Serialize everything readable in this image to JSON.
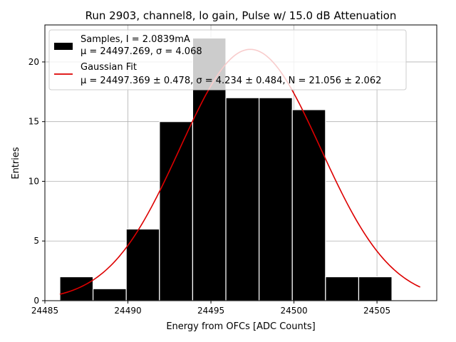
{
  "chart_data": {
    "type": "bar",
    "title": "Run 2903, channel8, lo gain, Pulse w/ 15.0 dB Attenuation",
    "xlabel": "Energy from OFCs [ADC Counts]",
    "ylabel": "Entries",
    "xlim": [
      24485,
      24508.6
    ],
    "ylim": [
      0,
      23.1
    ],
    "grid": true,
    "x_ticks": [
      24485,
      24490,
      24495,
      24500,
      24505
    ],
    "y_ticks": [
      0,
      5,
      10,
      15,
      20
    ],
    "bins": [
      {
        "left": 24485.9,
        "right": 24487.9,
        "value": 2
      },
      {
        "left": 24487.9,
        "right": 24489.9,
        "value": 1
      },
      {
        "left": 24489.9,
        "right": 24491.9,
        "value": 6
      },
      {
        "left": 24491.9,
        "right": 24493.9,
        "value": 15
      },
      {
        "left": 24493.9,
        "right": 24495.9,
        "value": 22
      },
      {
        "left": 24495.9,
        "right": 24497.9,
        "value": 17
      },
      {
        "left": 24497.9,
        "right": 24499.9,
        "value": 17
      },
      {
        "left": 24499.9,
        "right": 24501.9,
        "value": 16
      },
      {
        "left": 24501.9,
        "right": 24503.9,
        "value": 2
      },
      {
        "left": 24503.9,
        "right": 24505.9,
        "value": 2
      }
    ],
    "fit": {
      "type": "gaussian",
      "mu": 24497.369,
      "sigma": 4.234,
      "N": 21.056,
      "x_range": [
        24485.9,
        24507.6
      ],
      "color": "#dd0000"
    },
    "bar_color": "#000000",
    "legend": {
      "placement": "top-left",
      "samples_line1": "Samples, I = 2.0839mA",
      "samples_line2": "μ = 24497.269, σ = 4.068",
      "fit_line1": "Gaussian Fit",
      "fit_line2": "μ = 24497.369 ± 0.478, σ = 4.234 ± 0.484, N = 21.056 ± 2.062"
    }
  }
}
